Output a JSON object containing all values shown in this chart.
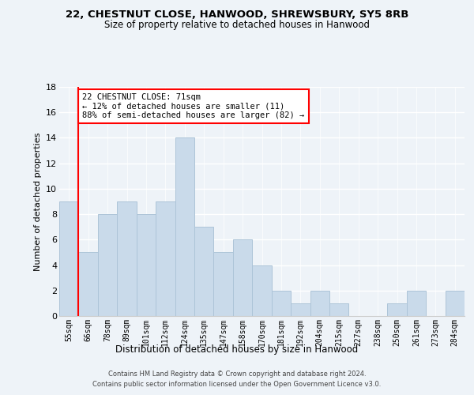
{
  "title1": "22, CHESTNUT CLOSE, HANWOOD, SHREWSBURY, SY5 8RB",
  "title2": "Size of property relative to detached houses in Hanwood",
  "xlabel": "Distribution of detached houses by size in Hanwood",
  "ylabel": "Number of detached properties",
  "bin_labels": [
    "55sqm",
    "66sqm",
    "78sqm",
    "89sqm",
    "101sqm",
    "112sqm",
    "124sqm",
    "135sqm",
    "147sqm",
    "158sqm",
    "170sqm",
    "181sqm",
    "192sqm",
    "204sqm",
    "215sqm",
    "227sqm",
    "238sqm",
    "250sqm",
    "261sqm",
    "273sqm",
    "284sqm"
  ],
  "bar_heights": [
    9,
    5,
    8,
    9,
    8,
    9,
    14,
    7,
    5,
    6,
    4,
    2,
    1,
    2,
    1,
    0,
    0,
    1,
    2,
    0,
    2
  ],
  "bar_color": "#c9daea",
  "bar_edgecolor": "#adc4d8",
  "vline_color": "red",
  "annotation_text": "22 CHESTNUT CLOSE: 71sqm\n← 12% of detached houses are smaller (11)\n88% of semi-detached houses are larger (82) →",
  "annotation_box_color": "white",
  "annotation_box_edgecolor": "red",
  "ylim": [
    0,
    18
  ],
  "yticks": [
    0,
    2,
    4,
    6,
    8,
    10,
    12,
    14,
    16,
    18
  ],
  "footer1": "Contains HM Land Registry data © Crown copyright and database right 2024.",
  "footer2": "Contains public sector information licensed under the Open Government Licence v3.0.",
  "background_color": "#eef3f8"
}
